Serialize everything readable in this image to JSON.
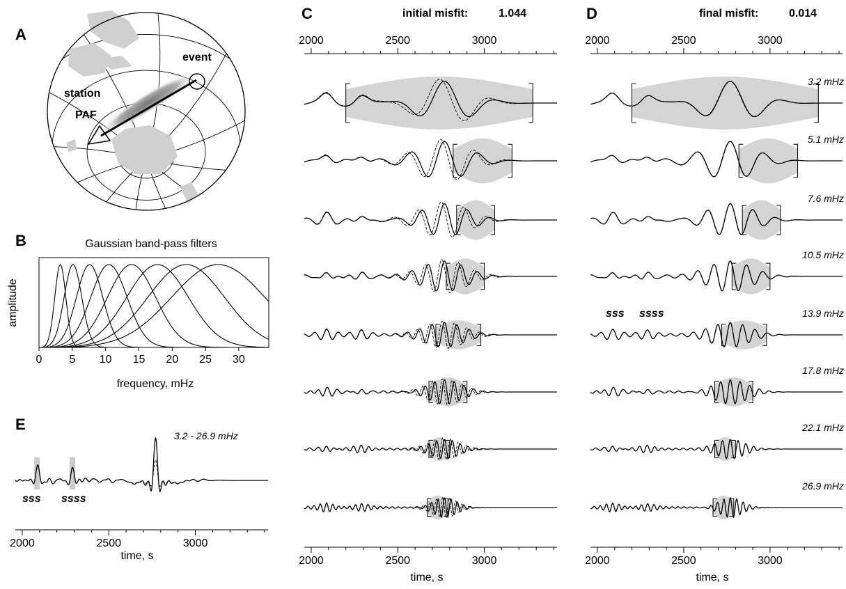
{
  "panels": {
    "A": {
      "letter": "A",
      "station_label": "station",
      "station_code": "PAF",
      "event_label": "event"
    },
    "B": {
      "letter": "B",
      "title": "Gaussian band-pass filters",
      "xlabel": "frequency, mHz",
      "ylabel": "amplitude"
    },
    "C": {
      "letter": "C",
      "misfit_label": "initial misfit:",
      "misfit_value": "1.044"
    },
    "D": {
      "letter": "D",
      "misfit_label": "final misfit:",
      "misfit_value": "0.014"
    },
    "E": {
      "letter": "E",
      "band_label": "3.2 - 26.9 mHz",
      "phase_sss": "sss",
      "phase_ssss": "ssss",
      "xlabel": "time, s"
    }
  },
  "time_axis": {
    "xlabel": "time, s",
    "xlim": [
      1960,
      3420
    ],
    "ticks": [
      2000,
      2500,
      3000
    ]
  },
  "frequency_bands": [
    "3.2 mHz",
    "5.1 mHz",
    "7.6 mHz",
    "10.5 mHz",
    "13.9 mHz",
    "17.8 mHz",
    "22.1 mHz",
    "26.9 mHz"
  ],
  "chart_data": [
    {
      "type": "line",
      "panel": "B",
      "title": "Gaussian band-pass filters",
      "xlabel": "frequency, mHz",
      "ylabel": "amplitude",
      "xlim": [
        0,
        34.5
      ],
      "ylim": [
        0,
        1
      ],
      "xticks": [
        0,
        5,
        10,
        15,
        20,
        25,
        30
      ],
      "center_frequencies": [
        3.2,
        5.1,
        7.6,
        10.5,
        13.9,
        17.8,
        22.1,
        26.9
      ],
      "grid": false
    },
    {
      "type": "line",
      "panel": "C",
      "title": "initial misfit: 1.044",
      "xlabel": "time, s",
      "xlim": [
        1960,
        3420
      ],
      "xticks": [
        2000,
        2500,
        3000
      ],
      "series": [
        {
          "name": "3.2 mHz",
          "window": [
            2200,
            3280
          ]
        },
        {
          "name": "5.1 mHz",
          "window": [
            2820,
            3160
          ]
        },
        {
          "name": "7.6 mHz",
          "window": [
            2840,
            3060
          ]
        },
        {
          "name": "10.5 mHz",
          "window": [
            2780,
            3000
          ]
        },
        {
          "name": "13.9 mHz",
          "window": [
            2720,
            2980
          ]
        },
        {
          "name": "17.8 mHz",
          "window": [
            2680,
            2900
          ]
        },
        {
          "name": "22.1 mHz",
          "window": [
            2680,
            2800
          ]
        },
        {
          "name": "26.9 mHz",
          "window": [
            2670,
            2790
          ]
        }
      ]
    },
    {
      "type": "line",
      "panel": "D",
      "title": "final misfit: 0.014",
      "xlabel": "time, s",
      "xlim": [
        1960,
        3420
      ],
      "xticks": [
        2000,
        2500,
        3000
      ],
      "series": [
        {
          "name": "3.2 mHz",
          "window": [
            2200,
            3280
          ]
        },
        {
          "name": "5.1 mHz",
          "window": [
            2820,
            3160
          ]
        },
        {
          "name": "7.6 mHz",
          "window": [
            2840,
            3060
          ]
        },
        {
          "name": "10.5 mHz",
          "window": [
            2780,
            3000
          ]
        },
        {
          "name": "13.9 mHz",
          "window": [
            2720,
            2980
          ]
        },
        {
          "name": "17.8 mHz",
          "window": [
            2680,
            2900
          ]
        },
        {
          "name": "22.1 mHz",
          "window": [
            2680,
            2800
          ]
        },
        {
          "name": "26.9 mHz",
          "window": [
            2670,
            2790
          ]
        }
      ]
    },
    {
      "type": "line",
      "panel": "E",
      "xlabel": "time, s",
      "xlim": [
        1960,
        3420
      ],
      "xticks": [
        2000,
        2500,
        3000
      ],
      "annotation": "3.2 - 26.9 mHz",
      "phase_markers": [
        {
          "name": "sss",
          "t": 2085
        },
        {
          "name": "ssss",
          "t": 2290
        }
      ]
    }
  ]
}
